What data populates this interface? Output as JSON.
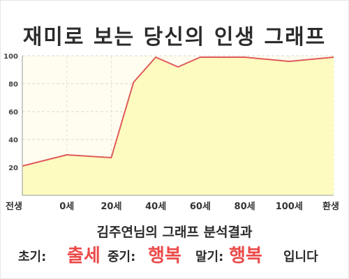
{
  "header": {
    "title": "재미로 보는 당신의 인생 그래프"
  },
  "chart_data": {
    "type": "area",
    "x_tick_labels": [
      "전생",
      "0세",
      "20세",
      "40세",
      "60세",
      "80세",
      "100세",
      "환생"
    ],
    "y_tick_labels": [
      "20",
      "40",
      "60",
      "80",
      "100"
    ],
    "ylim": [
      0,
      100
    ],
    "grid": true,
    "line_color": "#e05a5a",
    "fill_color": "#fdfbc0",
    "series": [
      {
        "x": [
          -20,
          0,
          20,
          30,
          40,
          50,
          60,
          80,
          100,
          120
        ],
        "values": [
          21,
          29,
          27,
          81,
          99,
          92,
          99,
          99,
          96,
          99
        ]
      }
    ]
  },
  "result": {
    "heading": "김주연님의 그래프 분석결과",
    "early_label": "초기:",
    "early_value": "출세",
    "middle_label": "중기:",
    "middle_value": "행복",
    "late_label": "말기:",
    "late_value": "행복",
    "suffix": "입니다"
  }
}
